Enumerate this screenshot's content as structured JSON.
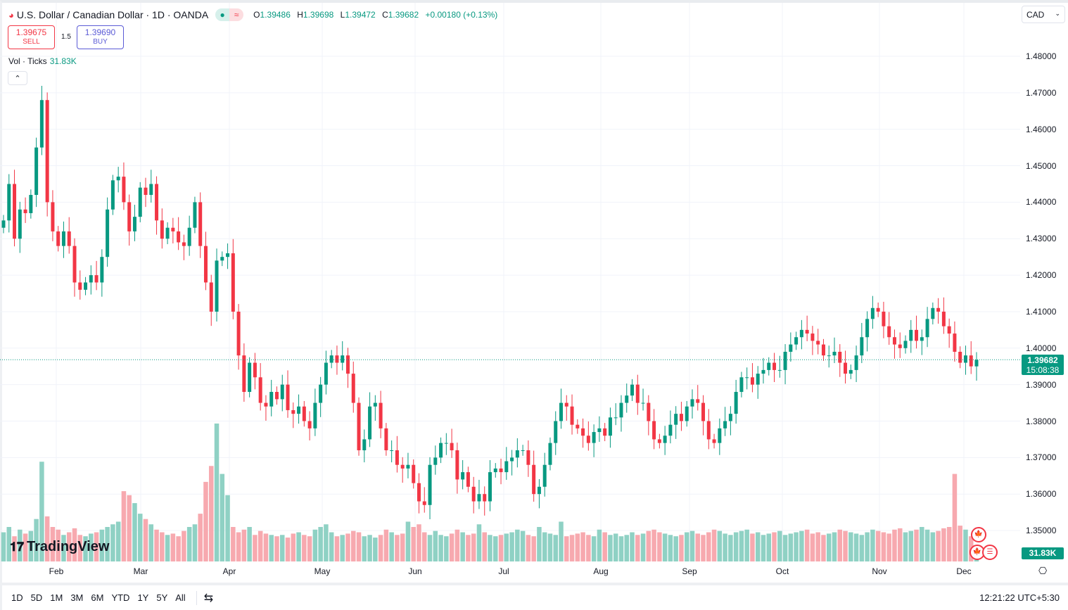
{
  "header": {
    "symbol_title": "U.S. Dollar / Canadian Dollar · 1D · OANDA",
    "o_label": "O",
    "o": "1.39486",
    "h_label": "H",
    "h": "1.39698",
    "l_label": "L",
    "l": "1.39472",
    "c_label": "C",
    "c": "1.39682",
    "change": "+0.00180 (+0.13%)",
    "market_status_icon": "dot-icon",
    "data_icon": "approx-icon"
  },
  "trade": {
    "sell_price": "1.39675",
    "sell_label": "SELL",
    "spread": "1.5",
    "buy_price": "1.39690",
    "buy_label": "BUY"
  },
  "volume_legend": {
    "label": "Vol · Ticks",
    "value": "31.83K"
  },
  "currency": "CAD",
  "price_axis": [
    "1.48000",
    "1.47000",
    "1.46000",
    "1.45000",
    "1.44000",
    "1.43000",
    "1.42000",
    "1.41000",
    "1.40000",
    "1.39000",
    "1.38000",
    "1.37000",
    "1.36000",
    "1.35000"
  ],
  "current_price": {
    "price": "1.39682",
    "countdown": "15:08:38"
  },
  "volume_tag": "31.83K",
  "time_axis": [
    "Feb",
    "Mar",
    "Apr",
    "May",
    "Jun",
    "Jul",
    "Aug",
    "Sep",
    "Oct",
    "Nov",
    "Dec"
  ],
  "range_buttons": [
    "1D",
    "5D",
    "1M",
    "3M",
    "6M",
    "YTD",
    "1Y",
    "5Y",
    "All"
  ],
  "clock": "12:21:22 UTC+5:30",
  "logo": "TradingView",
  "colors": {
    "up": "#089981",
    "down": "#f23645",
    "up_volume": "#8fd1c4",
    "down_volume": "#f7a9af",
    "grid": "#f0f3fa"
  },
  "chart_data": {
    "type": "candlestick",
    "title": "U.S. Dollar / Canadian Dollar · 1D · OANDA",
    "ylim": [
      1.35,
      1.48
    ],
    "grid": true,
    "x_tick_labels": [
      "Feb",
      "Mar",
      "Apr",
      "May",
      "Jun",
      "Jul",
      "Aug",
      "Sep",
      "Oct",
      "Nov",
      "Dec"
    ],
    "close": [
      1.435,
      1.445,
      1.43,
      1.438,
      1.437,
      1.442,
      1.455,
      1.468,
      1.44,
      1.432,
      1.428,
      1.432,
      1.428,
      1.418,
      1.416,
      1.418,
      1.42,
      1.418,
      1.425,
      1.438,
      1.446,
      1.447,
      1.44,
      1.432,
      1.436,
      1.444,
      1.442,
      1.445,
      1.435,
      1.43,
      1.433,
      1.432,
      1.429,
      1.428,
      1.433,
      1.44,
      1.428,
      1.418,
      1.41,
      1.424,
      1.425,
      1.426,
      1.41,
      1.398,
      1.388,
      1.396,
      1.392,
      1.385,
      1.384,
      1.388,
      1.386,
      1.39,
      1.383,
      1.382,
      1.384,
      1.38,
      1.378,
      1.385,
      1.39,
      1.396,
      1.398,
      1.396,
      1.398,
      1.393,
      1.385,
      1.372,
      1.375,
      1.384,
      1.385,
      1.378,
      1.372,
      1.372,
      1.368,
      1.367,
      1.368,
      1.363,
      1.358,
      1.357,
      1.368,
      1.37,
      1.374,
      1.374,
      1.372,
      1.364,
      1.366,
      1.362,
      1.358,
      1.36,
      1.358,
      1.366,
      1.367,
      1.366,
      1.369,
      1.37,
      1.372,
      1.372,
      1.368,
      1.36,
      1.362,
      1.368,
      1.374,
      1.38,
      1.385,
      1.384,
      1.379,
      1.378,
      1.376,
      1.374,
      1.377,
      1.378,
      1.376,
      1.381,
      1.381,
      1.385,
      1.387,
      1.39,
      1.385,
      1.385,
      1.38,
      1.375,
      1.374,
      1.376,
      1.379,
      1.382,
      1.38,
      1.384,
      1.386,
      1.385,
      1.38,
      1.375,
      1.374,
      1.378,
      1.38,
      1.382,
      1.388,
      1.392,
      1.392,
      1.39,
      1.393,
      1.394,
      1.396,
      1.394,
      1.394,
      1.399,
      1.401,
      1.403,
      1.405,
      1.404,
      1.402,
      1.401,
      1.398,
      1.398,
      1.399,
      1.396,
      1.393,
      1.394,
      1.398,
      1.403,
      1.408,
      1.411,
      1.41,
      1.406,
      1.403,
      1.401,
      1.4,
      1.402,
      1.405,
      1.402,
      1.403,
      1.408,
      1.411,
      1.41,
      1.406,
      1.404,
      1.399,
      1.396,
      1.398,
      1.395,
      1.3968
    ],
    "volume_k": [
      110,
      130,
      95,
      120,
      105,
      115,
      160,
      376,
      170,
      130,
      120,
      100,
      110,
      125,
      100,
      95,
      105,
      110,
      120,
      130,
      140,
      150,
      265,
      250,
      220,
      180,
      160,
      140,
      120,
      110,
      100,
      105,
      95,
      115,
      130,
      140,
      180,
      300,
      360,
      520,
      330,
      250,
      130,
      110,
      120,
      130,
      100,
      115,
      105,
      100,
      95,
      100,
      90,
      105,
      110,
      100,
      95,
      120,
      130,
      140,
      110,
      95,
      100,
      105,
      115,
      110,
      95,
      100,
      90,
      100,
      120,
      110,
      100,
      105,
      150,
      130,
      140,
      110,
      100,
      115,
      100,
      95,
      105,
      120,
      110,
      100,
      105,
      140,
      110,
      100,
      95,
      100,
      105,
      110,
      120,
      115,
      100,
      95,
      130,
      110,
      105,
      100,
      150,
      95,
      100,
      105,
      110,
      100,
      95,
      120,
      110,
      100,
      105,
      95,
      100,
      110,
      100,
      105,
      115,
      120,
      110,
      105,
      100,
      95,
      100,
      110,
      115,
      105,
      100,
      110,
      120,
      115,
      105,
      100,
      110,
      115,
      120,
      105,
      110,
      100,
      105,
      110,
      115,
      100,
      105,
      110,
      115,
      120,
      105,
      110,
      100,
      105,
      110,
      120,
      115,
      110,
      105,
      100,
      110,
      120,
      115,
      110,
      105,
      120,
      125,
      110,
      115,
      120,
      130,
      120,
      110,
      115,
      125,
      130,
      330,
      135,
      120,
      95,
      31.83
    ]
  }
}
